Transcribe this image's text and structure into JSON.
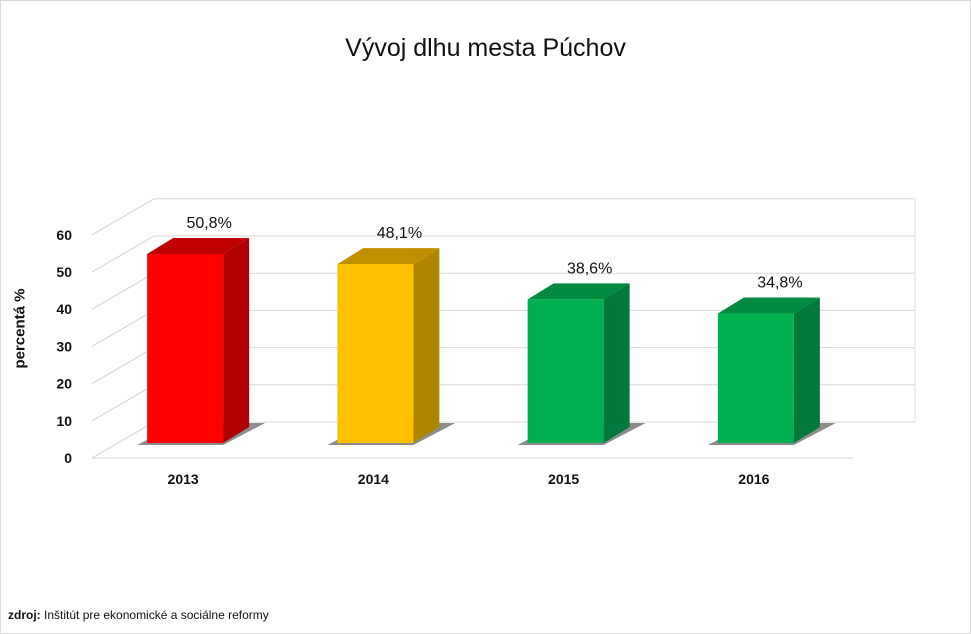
{
  "chart_data": {
    "type": "bar",
    "title": "Vývoj dlhu mesta Púchov",
    "ylabel": "percentá %",
    "xlabel": "",
    "categories": [
      "2013",
      "2014",
      "2015",
      "2016"
    ],
    "values": [
      50.8,
      48.1,
      38.6,
      34.8
    ],
    "data_labels": [
      "50,8%",
      "48,1%",
      "38,6%",
      "34,8%"
    ],
    "yticks": [
      "0",
      "10",
      "20",
      "30",
      "40",
      "50",
      "60"
    ],
    "ylim": [
      0,
      60
    ],
    "grid": true,
    "legend": "none",
    "bar_colors": [
      "#ff0000",
      "#ffc000",
      "#00b050",
      "#00b050"
    ],
    "bar_side_colors": [
      "#b00000",
      "#b08600",
      "#00793a",
      "#00793a"
    ],
    "bar_top_colors": [
      "#c00000",
      "#c09000",
      "#008a40",
      "#008a40"
    ]
  },
  "source": {
    "prefix": "zdroj:",
    "text": " Inštitút pre ekonomické a sociálne reformy"
  }
}
